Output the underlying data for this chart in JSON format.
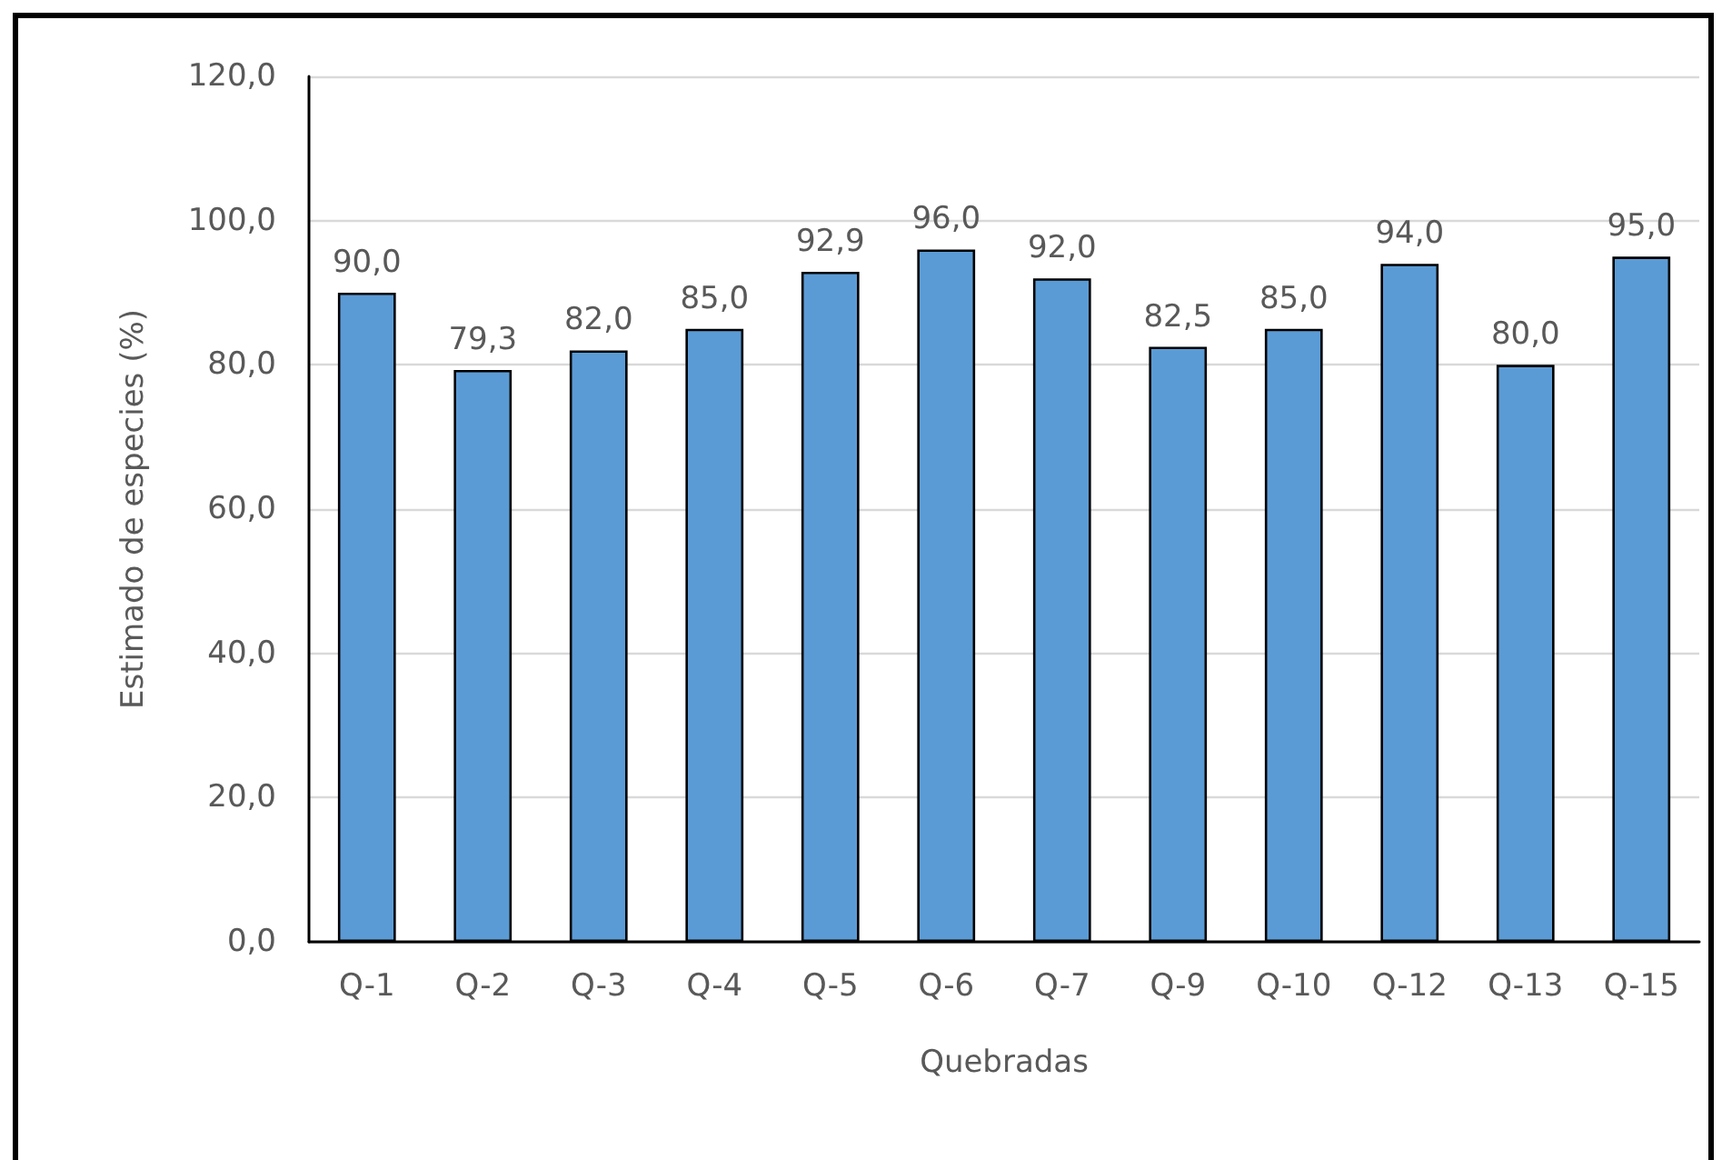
{
  "chart_data": {
    "type": "bar",
    "xlabel": "Quebradas",
    "ylabel": "Estimado de especies (%)",
    "categories": [
      "Q-1",
      "Q-2",
      "Q-3",
      "Q-4",
      "Q-5",
      "Q-6",
      "Q-7",
      "Q-9",
      "Q-10",
      "Q-12",
      "Q-13",
      "Q-15"
    ],
    "values": [
      90.0,
      79.3,
      82.0,
      85.0,
      92.9,
      96.0,
      92.0,
      82.5,
      85.0,
      94.0,
      80.0,
      95.0
    ],
    "value_labels": [
      "90,0",
      "79,3",
      "82,0",
      "85,0",
      "92,9",
      "96,0",
      "92,0",
      "82,5",
      "85,0",
      "94,0",
      "80,0",
      "95,0"
    ],
    "color": "#5b9bd5",
    "ylim": [
      0,
      120
    ],
    "yticks": [
      {
        "value": 0,
        "label": "0,0"
      },
      {
        "value": 20,
        "label": "20,0"
      },
      {
        "value": 40,
        "label": "40,0"
      },
      {
        "value": 60,
        "label": "60,0"
      },
      {
        "value": 80,
        "label": "80,0"
      },
      {
        "value": 100,
        "label": "100,0"
      },
      {
        "value": 120,
        "label": "120,0"
      }
    ],
    "grid": "y"
  }
}
